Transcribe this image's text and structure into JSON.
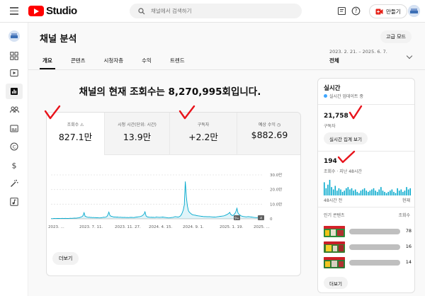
{
  "app": {
    "logo_text": "Studio"
  },
  "search": {
    "placeholder": "채널에서 검색하기"
  },
  "header": {
    "create_label": "만들기"
  },
  "page": {
    "title": "채널 분석",
    "advanced_mode": "고급 모드"
  },
  "tabs": [
    {
      "label": "개요",
      "active": true
    },
    {
      "label": "콘텐츠",
      "active": false
    },
    {
      "label": "시청자층",
      "active": false
    },
    {
      "label": "수익",
      "active": false
    },
    {
      "label": "트렌드",
      "active": false
    }
  ],
  "date_range": {
    "range": "2023. 2. 21. – 2025. 6. 7.",
    "label": "전체"
  },
  "headline": "채널의 현재 조회수는 8,270,995회입니다.",
  "metrics": [
    {
      "label": "조회수",
      "value": "827.1만"
    },
    {
      "label": "시청 시간(단위: 시간)",
      "value": "13.9만"
    },
    {
      "label": "구독자",
      "value": "+2.2만"
    },
    {
      "label": "예상 수익",
      "value": "$882.69"
    }
  ],
  "chart_data": {
    "type": "line",
    "y_ticks": [
      "30.0만",
      "20.0만",
      "10.0만",
      "0"
    ],
    "ylim": [
      0,
      300000
    ],
    "x_ticks": [
      "2023. ...",
      "2023. 7. 11.",
      "2023. 11. 27.",
      "2024. 4. 15.",
      "2024. 9. 1.",
      "2025. 1. 19.",
      "2025. ..."
    ],
    "badges": [
      "9+",
      "4"
    ],
    "series": [
      {
        "values": [
          1500,
          1200,
          1500,
          2500,
          2000,
          1800,
          2200,
          2800,
          2400,
          2000,
          2600,
          3500,
          3000,
          2500,
          3200,
          2800,
          2500,
          3000,
          3500,
          4000,
          3200,
          3800,
          4500,
          5000,
          4200,
          5500,
          6500,
          7000,
          9000,
          12000,
          15000,
          22000,
          42000,
          18000,
          15000,
          12000,
          10000,
          11000,
          9000,
          10000,
          8000,
          9000,
          8000,
          8500,
          7500,
          8000,
          7000,
          6500,
          7000,
          8000,
          9000,
          11000,
          10000,
          12000,
          15000,
          26000,
          46000,
          24000,
          18000,
          16000,
          14000,
          12000,
          13000,
          11000,
          12000,
          11000,
          10000,
          11000,
          10000,
          9500,
          9000,
          9500,
          9000,
          8500,
          9000,
          8000,
          9000,
          10000,
          9500,
          9000,
          8500,
          9500,
          11000,
          12000,
          13000,
          14000,
          15000,
          17000,
          20000,
          25000,
          32000,
          48000,
          20000,
          14000,
          12000,
          11000,
          10000,
          11000,
          9500,
          10500,
          9000,
          10000,
          12000,
          11000,
          10500,
          10000,
          10500,
          11000,
          12000,
          11000,
          10000,
          9000,
          8000,
          7000,
          6500,
          7000,
          8000,
          9000,
          10000,
          12000,
          15000,
          14000,
          13000,
          12000,
          14000,
          18000,
          26000,
          40000,
          60000,
          95000,
          255000,
          150000,
          90000,
          55000,
          45000,
          38000,
          32000,
          28000,
          26000,
          25000,
          24000,
          22000,
          21000,
          20000,
          19000,
          18000,
          17000,
          16000,
          15000,
          15500,
          15000,
          14500,
          14000,
          14500,
          14000,
          13500,
          13000,
          12500,
          12000,
          12500,
          13000,
          14000,
          15000,
          16000,
          17000,
          18000,
          19000,
          20000,
          22000,
          25000,
          28000,
          32000,
          37000,
          44000,
          30000,
          25000,
          22000,
          28000,
          36000,
          50000,
          72000,
          40000,
          30000,
          25000,
          20000,
          18000,
          16000,
          15000,
          14000,
          13000,
          14000,
          15000,
          14000,
          13000,
          12000,
          11000,
          10000,
          9000,
          8500,
          8000,
          8500,
          9000,
          8000,
          7500,
          7000,
          6500
        ]
      }
    ]
  },
  "more_button": "더보기",
  "realtime": {
    "title": "실시간",
    "updating": "실시간 업데이트 중",
    "subscribers_value": "21,758",
    "subscribers_label": "구독자",
    "view_count_button": "실시간 집계 보기",
    "views_value": "194",
    "views_label": "조회수 · 지난 48시간",
    "bars": [
      55,
      30,
      45,
      65,
      35,
      25,
      40,
      20,
      30,
      25,
      15,
      20,
      30,
      35,
      25,
      30,
      20,
      25,
      15,
      10,
      20,
      25,
      30,
      20,
      15,
      20,
      25,
      30,
      20,
      15,
      25,
      35,
      20,
      15,
      10,
      15,
      20,
      25,
      15,
      10,
      30,
      20,
      25,
      15,
      20,
      35,
      25,
      30
    ],
    "axis_left": "48시간 전",
    "axis_right": "현재",
    "top_content_label": "인기 콘텐츠",
    "views_column": "조회수",
    "top_content": [
      {
        "count": "78"
      },
      {
        "count": "16"
      },
      {
        "count": "14"
      }
    ],
    "more_button": "더보기"
  },
  "colors": {
    "accent": "#00a8cc",
    "annotation": "#e8131b",
    "brand": "#ff0000"
  }
}
